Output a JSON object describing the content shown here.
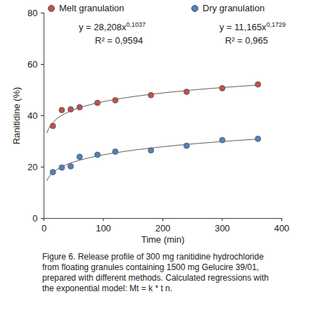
{
  "chart_data": {
    "type": "scatter",
    "x_label": "Time (min)",
    "y_label": "Ranitidine (%)",
    "caption": "Figure 6. Release profile of 300 mg ranitidine hydrochloride from floating granules containing 1500 mg Gelucire 39/01, prepared with different methods. Calculated regressions with the exponential model: Mt = k * t n.",
    "xlim": [
      0,
      400
    ],
    "xticks": [
      0,
      100,
      200,
      300,
      400
    ],
    "ylim": [
      0,
      80
    ],
    "yticks": [
      0,
      20,
      40,
      60,
      80
    ],
    "grid": false,
    "legend": "top",
    "series": [
      {
        "name": "Melt granulation",
        "color": "#c0504d",
        "marker": "circle",
        "x": [
          15,
          30,
          45,
          60,
          90,
          120,
          180,
          240,
          300,
          360
        ],
        "values": [
          36,
          42.2,
          42.5,
          43.3,
          45,
          46,
          48,
          49.3,
          50.7,
          52.2
        ],
        "fit": {
          "k": 28.208,
          "n": 0.1037,
          "equation": "y = 28,208x",
          "exponent": "0,1037",
          "r2_label": "R² = 0,9594"
        }
      },
      {
        "name": "Dry granulation",
        "color": "#4f81bd",
        "marker": "circle",
        "x": [
          15,
          30,
          45,
          60,
          90,
          120,
          180,
          240,
          300,
          360
        ],
        "values": [
          18,
          19.8,
          20.3,
          24,
          24.8,
          26,
          26.5,
          28.3,
          30.5,
          31
        ],
        "fit": {
          "k": 11.165,
          "n": 0.1729,
          "equation": "y = 11,165x",
          "exponent": "0,1729",
          "r2_label": "R² = 0,965"
        }
      }
    ]
  }
}
